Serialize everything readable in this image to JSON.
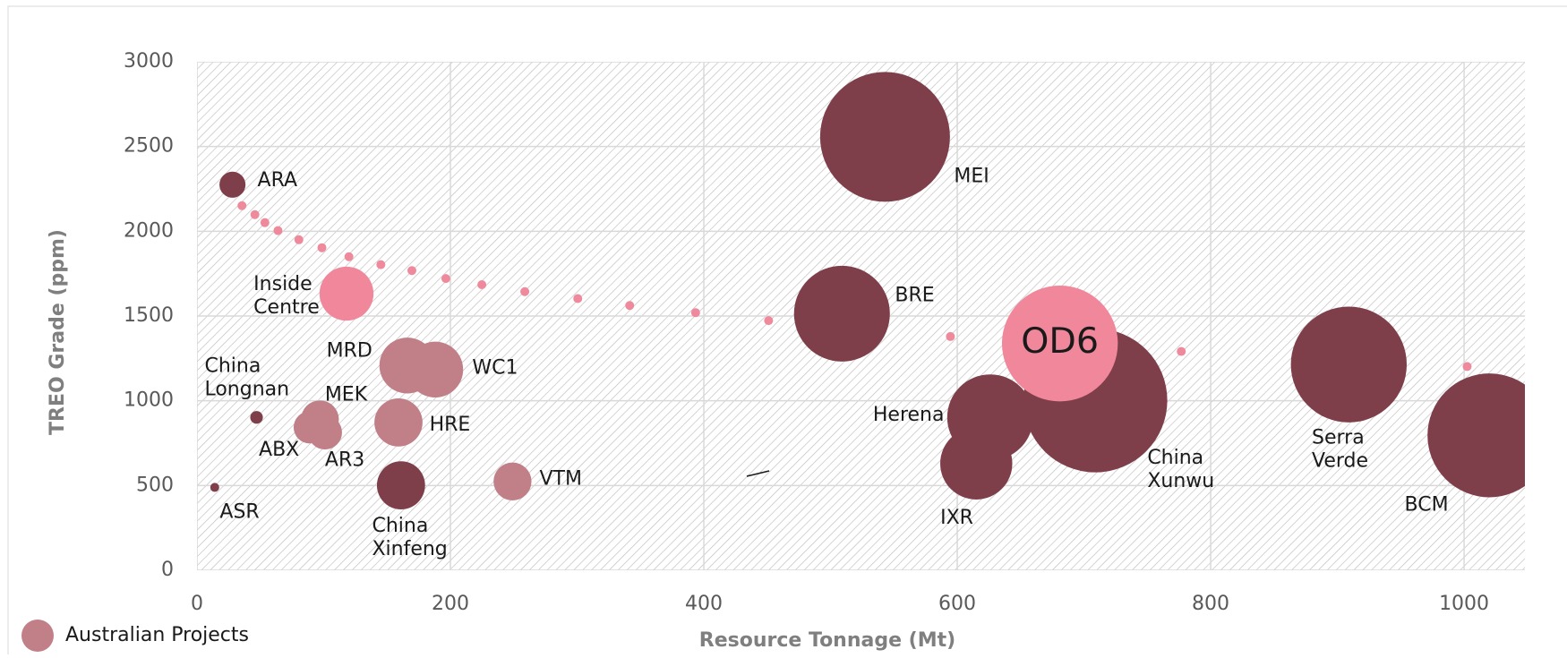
{
  "chart_data": {
    "type": "bubble",
    "x_label": "Resource Tonnage (Mt)",
    "y_label": "TREO Grade (ppm)",
    "xlim": [
      0,
      1048
    ],
    "xticks": [
      0,
      200,
      400,
      600,
      800,
      1000
    ],
    "ylim": [
      0,
      3000
    ],
    "yticks": [
      0,
      500,
      1000,
      1500,
      2000,
      2500,
      3000
    ],
    "grid": true,
    "legend": "bottom-left",
    "series": [
      {
        "name": "Australian Projects",
        "color": "#c17f87",
        "labels": [
          "WC1",
          "MRD",
          "HRE",
          "ABX",
          "AR3",
          "MEK",
          "VTM"
        ],
        "x": [
          188,
          166,
          159,
          89,
          101,
          97,
          249
        ],
        "values": [
          1184,
          1208,
          872,
          843,
          813,
          890,
          524
        ],
        "sizes": [
          78,
          78,
          58,
          26,
          29,
          36,
          36
        ]
      },
      {
        "color": "#7f3f4a",
        "labels": [
          "ARA",
          "MEI",
          "BRE",
          "China Xunwu",
          "Herena",
          "IXR",
          "Serra Verde",
          "BCM",
          "China Xinfeng",
          "China Longnan",
          "ASR"
        ],
        "x": [
          28,
          543,
          509,
          709,
          626,
          615,
          909,
          1020,
          161,
          47,
          14
        ],
        "values": [
          2275,
          2557,
          1514,
          1002,
          902,
          630,
          1214,
          796,
          501,
          902,
          489
        ],
        "sizes": [
          17,
          422,
          230,
          518,
          185,
          130,
          336,
          384,
          58,
          4,
          2
        ]
      },
      {
        "color": "#f0879a",
        "labels": [
          "Inside Centre",
          "OD6"
        ],
        "x": [
          118,
          681
        ],
        "values": [
          1632,
          1338
        ],
        "sizes": [
          73,
          336
        ]
      },
      {
        "color": "#ee8a9c",
        "x": [
          35.5,
          45.7,
          53.6,
          63.9,
          80.4,
          98.6,
          119.9,
          145.1,
          169.6,
          196.4,
          224.8,
          258.7,
          300.5,
          341.5,
          393.5,
          451.1,
          594.6,
          776.8,
          1002.4
        ],
        "values": [
          2151,
          2098,
          2051,
          2004,
          1950,
          1903,
          1850,
          1803,
          1768,
          1721,
          1685,
          1644,
          1603,
          1562,
          1520,
          1473,
          1379,
          1291,
          1202
        ],
        "sizes": [
          2,
          2,
          2,
          2,
          2,
          2,
          2,
          2,
          2,
          2,
          2,
          2,
          2,
          2,
          2,
          2,
          2,
          2,
          2
        ]
      }
    ]
  }
}
